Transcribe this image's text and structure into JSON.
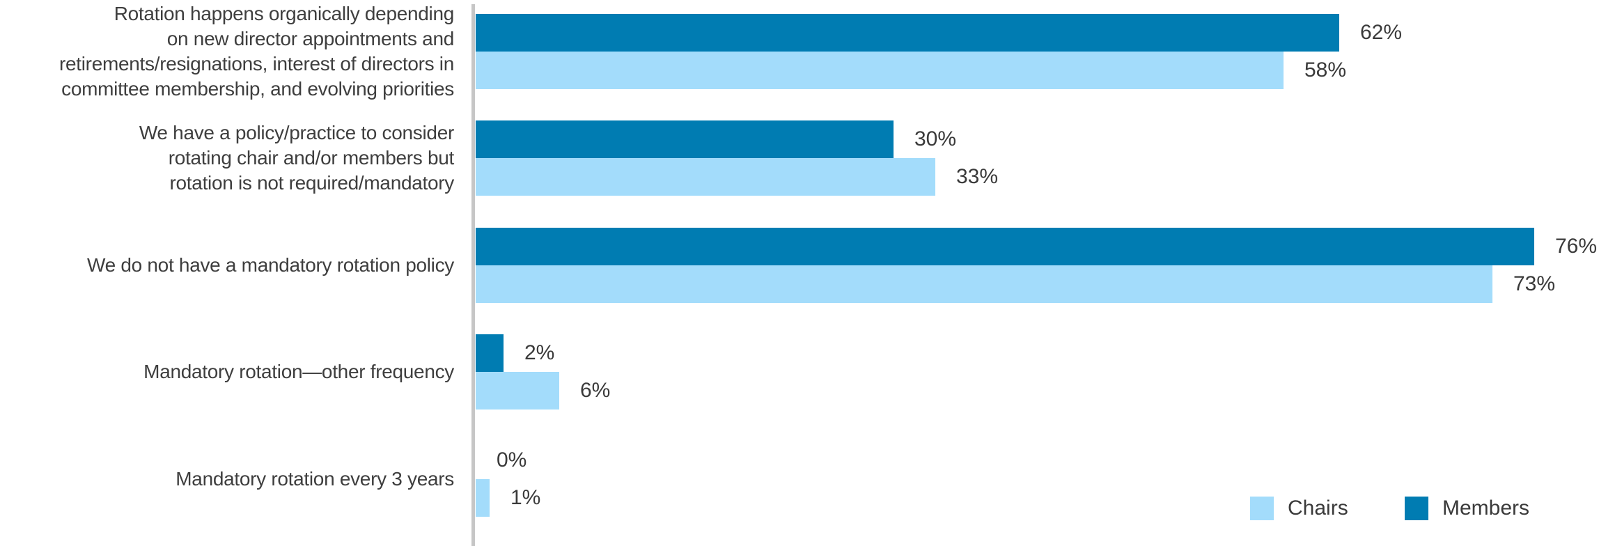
{
  "chart_data": {
    "type": "bar",
    "orientation": "horizontal",
    "title": "",
    "xlabel": "",
    "ylabel": "",
    "xlim": [
      0,
      80
    ],
    "grid": false,
    "legend_position": "bottom-right",
    "categories": [
      [
        "Rotation happens organically depending",
        "on new director appointments and",
        "retirements/resignations, interest of directors in",
        "committee membership, and evolving priorities"
      ],
      [
        "We have a policy/practice to consider",
        "rotating chair and/or members but",
        "rotation is not required/mandatory"
      ],
      [
        "We do not have a mandatory rotation policy"
      ],
      [
        "Mandatory rotation—other frequency"
      ],
      [
        "Mandatory rotation every 3 years"
      ]
    ],
    "series": [
      {
        "name": "Members",
        "color": "#007CB2",
        "values": [
          62,
          30,
          76,
          2,
          0
        ],
        "labels": [
          "62%",
          "30%",
          "76%",
          "2%",
          "0%"
        ]
      },
      {
        "name": "Chairs",
        "color": "#A3DCFB",
        "values": [
          58,
          33,
          73,
          6,
          1
        ],
        "labels": [
          "58%",
          "33%",
          "73%",
          "6%",
          "1%"
        ]
      }
    ]
  },
  "legend": {
    "chairs_label": "Chairs",
    "members_label": "Members"
  },
  "colors": {
    "members_bar": "#007CB2",
    "chairs_bar": "#A3DCFB",
    "axis_line": "#C6C6C6",
    "text": "#3E3E3E",
    "background": "#FFFFFF"
  }
}
